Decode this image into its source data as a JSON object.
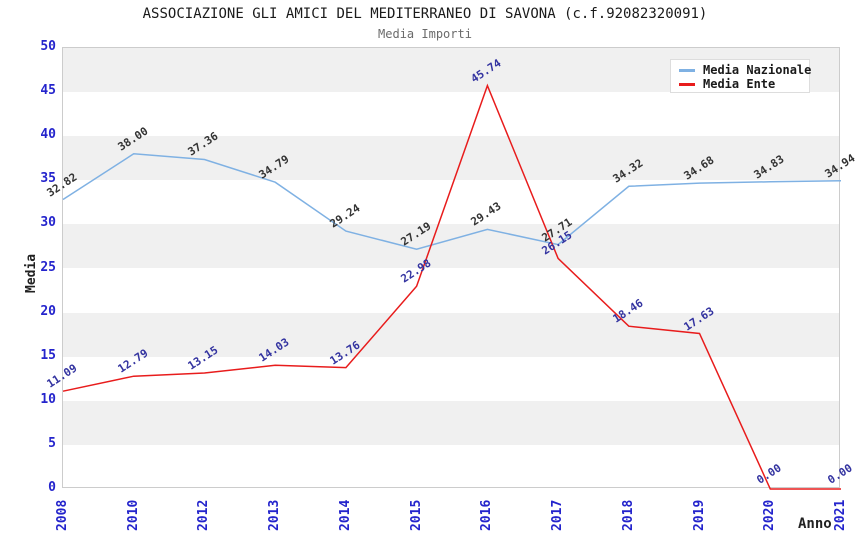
{
  "header": {
    "title": "ASSOCIAZIONE GLI AMICI DEL MEDITERRANEO DI SAVONA (c.f.92082320091)",
    "subtitle": "Media Importi"
  },
  "chart_data": {
    "type": "line",
    "categories": [
      "2008",
      "2010",
      "2012",
      "2013",
      "2014",
      "2015",
      "2016",
      "2017",
      "2018",
      "2019",
      "2020",
      "2021"
    ],
    "series": [
      {
        "name": "Media Nazionale",
        "color": "#7FB1E3",
        "label_color": "#333333",
        "values": [
          32.82,
          38.0,
          37.36,
          34.79,
          29.24,
          27.19,
          29.43,
          27.71,
          34.32,
          34.68,
          34.83,
          34.94
        ]
      },
      {
        "name": "Media Ente",
        "color": "#E81C1C",
        "label_color": "#3333A0",
        "values": [
          11.09,
          12.79,
          13.15,
          14.03,
          13.76,
          22.98,
          45.74,
          26.15,
          18.46,
          17.63,
          0.0,
          0.0
        ]
      }
    ],
    "xlabel": "Anno",
    "ylabel": "Media",
    "ylim": [
      0,
      50
    ],
    "ytick_step": 5,
    "grid": "alternating horizontal gray bands",
    "legend_position": "top-right",
    "data_labels": "each point labelled with value, 2 decimals, rotated",
    "band_color": "#F0F0F0",
    "tick_label_color": "#2424CC",
    "plot_border_color": "#CCCCCC"
  }
}
